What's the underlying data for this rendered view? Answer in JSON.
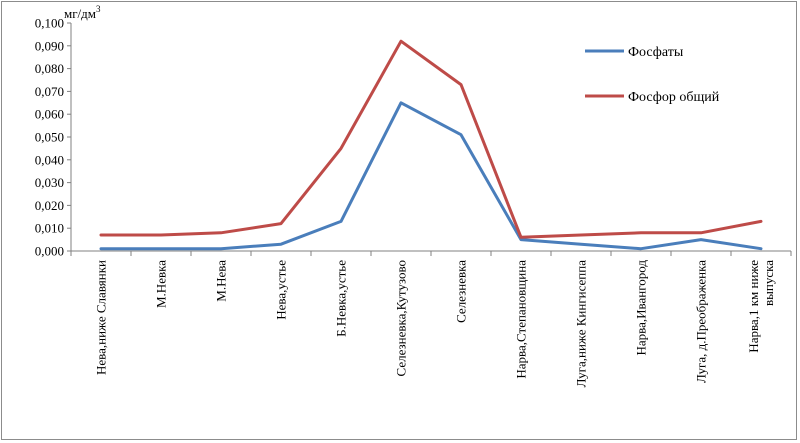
{
  "chart_data": {
    "type": "line",
    "unit_label": "мг/дм",
    "unit_superscript": "3",
    "ylim": [
      0,
      0.1
    ],
    "y_ticks": [
      "0,000",
      "0,010",
      "0,020",
      "0,030",
      "0,040",
      "0,050",
      "0,060",
      "0,070",
      "0,080",
      "0,090",
      "0,100"
    ],
    "grid": false,
    "legend_position": "top-right",
    "categories": [
      "Нева,ниже Славянки",
      "М.Невка",
      "М.Нева",
      "Нева,устье",
      "Б.Невка,устье",
      "Селезневка,Кутузово",
      "Селезневка",
      "Нарва,Степановщина",
      "Луга,ниже Кингисеппа",
      "Нарва,Ивангород",
      "Луга, д.Преображенка",
      "Нарва,1 км ниже выпуска"
    ],
    "series": [
      {
        "name": "Фосфаты",
        "color": "#4a7ebb",
        "values": [
          0.001,
          0.001,
          0.001,
          0.003,
          0.013,
          0.065,
          0.051,
          0.005,
          0.003,
          0.001,
          0.005,
          0.001
        ]
      },
      {
        "name": "Фосфор общий",
        "color": "#be4b48",
        "values": [
          0.007,
          0.007,
          0.008,
          0.012,
          0.045,
          0.092,
          0.073,
          0.006,
          0.007,
          0.008,
          0.008,
          0.013
        ]
      }
    ]
  }
}
